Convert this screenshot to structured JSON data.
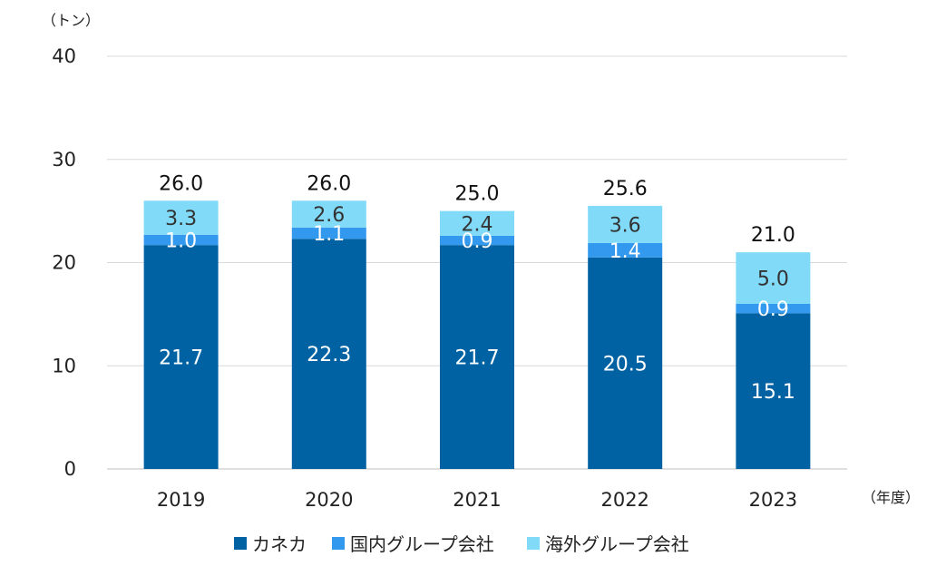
{
  "chart_data": {
    "type": "bar",
    "stacked": true,
    "title": "",
    "xlabel": "（年度）",
    "ylabel": "（トン）",
    "ylim": [
      0,
      40
    ],
    "yticks": [
      0,
      10,
      20,
      30,
      40
    ],
    "grid": true,
    "legend_position": "bottom",
    "categories": [
      "2019",
      "2020",
      "2021",
      "2022",
      "2023"
    ],
    "series": [
      {
        "name": "カネカ",
        "color": "#0062a3",
        "label_color": "#ffffff",
        "values": [
          21.7,
          22.3,
          21.7,
          20.5,
          15.1
        ]
      },
      {
        "name": "国内グループ会社",
        "color": "#3399ee",
        "label_color": "#ffffff",
        "values": [
          1.0,
          1.1,
          0.9,
          1.4,
          0.9
        ]
      },
      {
        "name": "海外グループ会社",
        "color": "#80daf8",
        "label_color": "#333333",
        "values": [
          3.3,
          2.6,
          2.4,
          3.6,
          5.0
        ]
      }
    ],
    "totals": [
      26.0,
      26.0,
      25.0,
      25.6,
      21.0
    ]
  }
}
